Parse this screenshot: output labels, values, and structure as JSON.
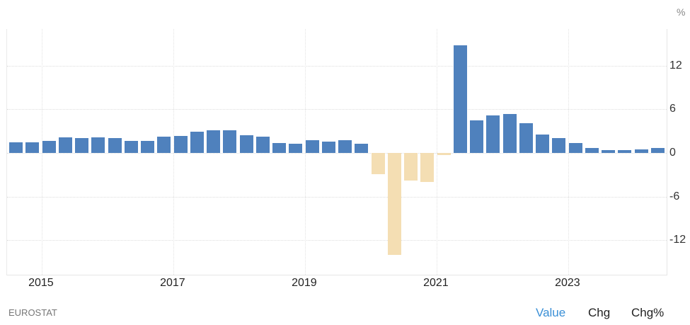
{
  "header": {
    "unit": "%"
  },
  "footer": {
    "source": "EUROSTAT",
    "tabs": [
      {
        "label": "Value",
        "active": true
      },
      {
        "label": "Chg",
        "active": false
      },
      {
        "label": "Chg%",
        "active": false
      }
    ]
  },
  "colors": {
    "positive": "#4f81bd",
    "negative": "#f4deb3",
    "active_tab": "#3a8fd6",
    "tab": "#222222"
  },
  "chart_data": {
    "type": "bar",
    "title": "",
    "xlabel": "",
    "ylabel": "%",
    "ylim": [
      -16.5,
      17.3
    ],
    "yticks": [
      12,
      6,
      0,
      -6,
      -12
    ],
    "xticks": [
      "2015",
      "2017",
      "2019",
      "2021",
      "2023"
    ],
    "grid": true,
    "legend": null,
    "categories": [
      "2014Q3",
      "2014Q4",
      "2015Q1",
      "2015Q2",
      "2015Q3",
      "2015Q4",
      "2016Q1",
      "2016Q2",
      "2016Q3",
      "2016Q4",
      "2017Q1",
      "2017Q2",
      "2017Q3",
      "2017Q4",
      "2018Q1",
      "2018Q2",
      "2018Q3",
      "2018Q4",
      "2019Q1",
      "2019Q2",
      "2019Q3",
      "2019Q4",
      "2020Q1",
      "2020Q2",
      "2020Q3",
      "2020Q4",
      "2021Q1",
      "2021Q2",
      "2021Q3",
      "2021Q4",
      "2022Q1",
      "2022Q2",
      "2022Q3",
      "2022Q4",
      "2023Q1",
      "2023Q2",
      "2023Q3",
      "2023Q4",
      "2024Q1",
      "2024Q2"
    ],
    "values": [
      1.5,
      1.5,
      1.7,
      2.1,
      2.0,
      2.1,
      2.0,
      1.7,
      1.7,
      2.2,
      2.3,
      2.9,
      3.1,
      3.1,
      2.4,
      2.2,
      1.4,
      1.3,
      1.8,
      1.6,
      1.8,
      1.3,
      -2.9,
      -14.0,
      -3.8,
      -4.0,
      -0.3,
      14.8,
      4.5,
      5.2,
      5.4,
      4.1,
      2.5,
      2.0,
      1.4,
      0.7,
      0.4,
      0.4,
      0.5,
      0.7
    ]
  }
}
